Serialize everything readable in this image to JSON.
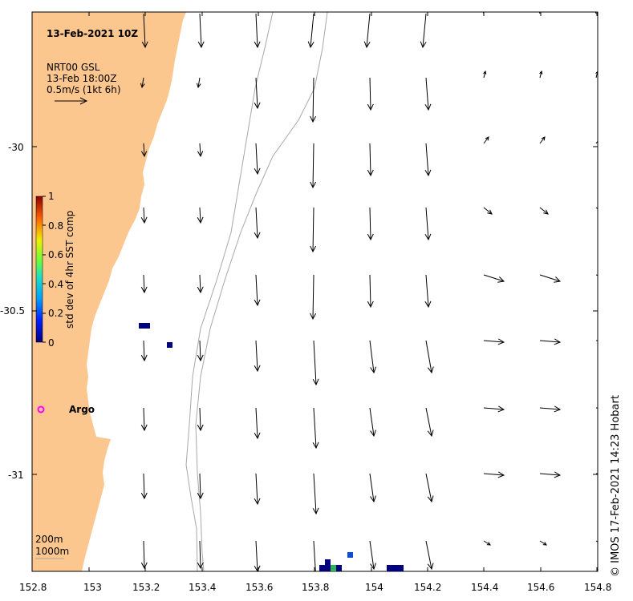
{
  "map": {
    "title": "13-Feb-2021 10Z",
    "legend_lines": [
      "NRT00 GSL",
      "13-Feb 18:00Z",
      "0.5m/s (1kt 6h)"
    ],
    "x_ticks": [
      "152.8",
      "153",
      "153.2",
      "153.4",
      "153.6",
      "153.8",
      "154",
      "154.2",
      "154.4",
      "154.6",
      "154.8"
    ],
    "y_ticks": [
      "-30",
      "-30.5",
      "-31"
    ],
    "colorbar": {
      "label": "std dev of 4hr SST comp",
      "ticks": [
        "1",
        "0.8",
        "0.6",
        "0.4",
        "0.2",
        "0"
      ]
    },
    "argo_label": "Argo",
    "depth_legend": [
      "200m",
      "1000m"
    ],
    "credit": "© IMOS 17-Feb-2021 14:23 Hobart",
    "colors": {
      "land": "#fcc68f",
      "sea": "#ffffff",
      "arrow": "#000000",
      "argo": "#ff00ff",
      "sst_low": "#000080",
      "sst_mid": "#0a4fd8",
      "sst_green": "#2eb35a"
    },
    "icons": [
      "current-vector-arrow-icon",
      "argo-float-marker-icon"
    ]
  }
}
